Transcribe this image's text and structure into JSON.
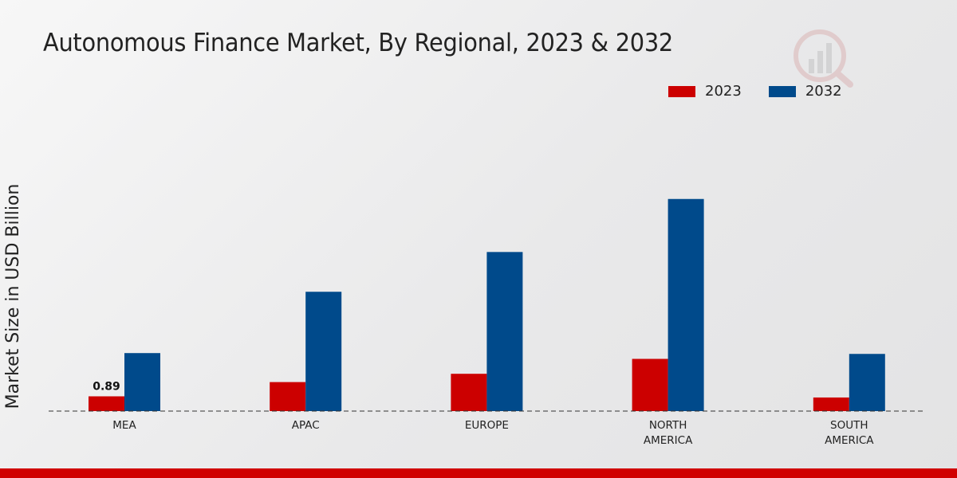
{
  "chart_data": {
    "type": "bar",
    "title": "Autonomous Finance Market, By Regional, 2023 & 2032",
    "xlabel": "",
    "ylabel": "Market Size in USD Billion",
    "categories": [
      "MEA",
      "APAC",
      "EUROPE",
      "NORTH\nAMERICA",
      "SOUTH\nAMERICA"
    ],
    "series": [
      {
        "name": "2023",
        "color": "#cc0000",
        "values": [
          0.89,
          1.75,
          2.25,
          3.15,
          0.82
        ]
      },
      {
        "name": "2032",
        "color": "#004a8b",
        "values": [
          3.5,
          7.2,
          9.6,
          12.8,
          3.45
        ]
      }
    ],
    "data_labels": [
      {
        "series": 0,
        "index": 0,
        "text": "0.89"
      }
    ],
    "ylim": [
      0,
      20
    ],
    "grid": false,
    "legend": "top-right"
  },
  "colors": {
    "accent_bottom_bar": "#d00000"
  }
}
